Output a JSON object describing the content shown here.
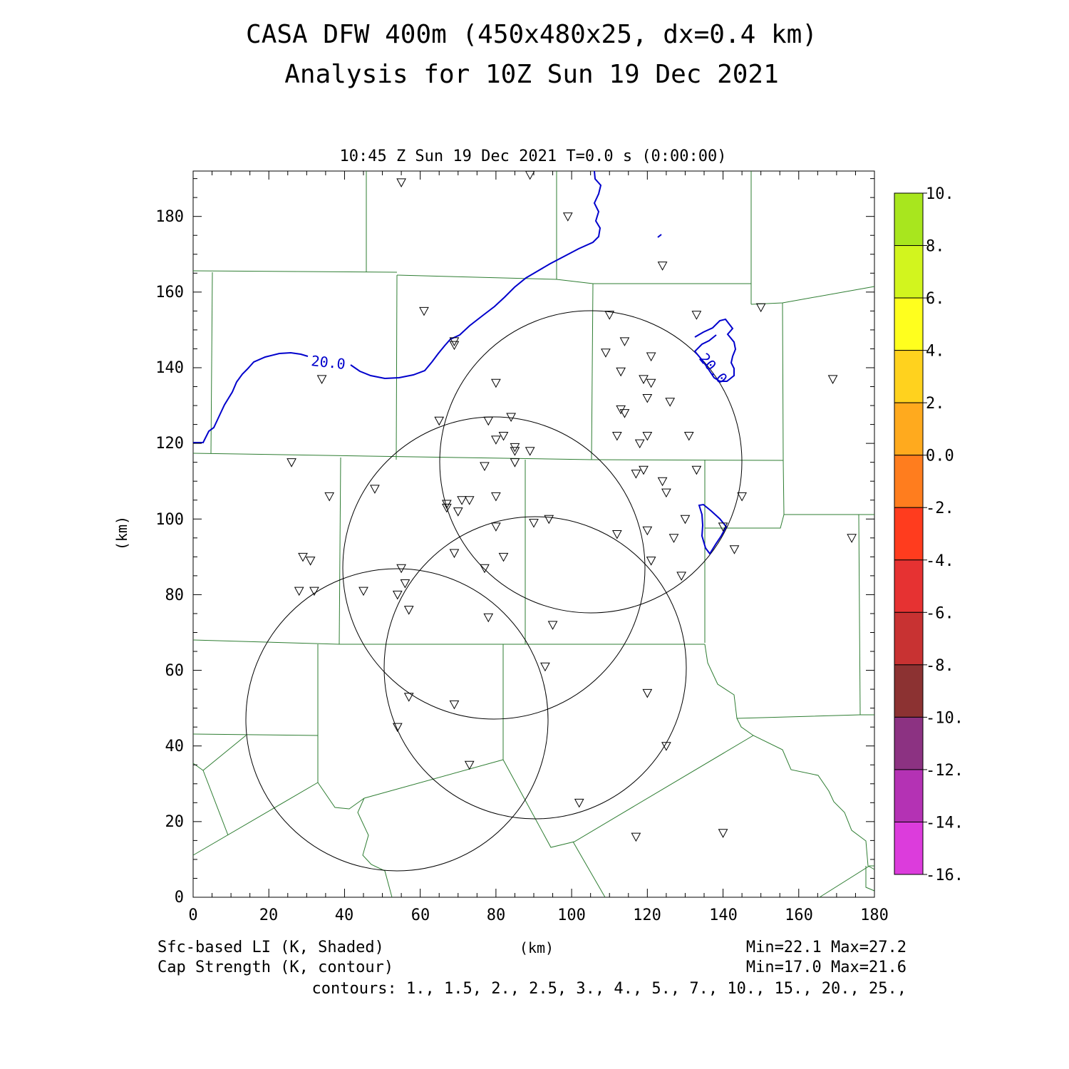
{
  "title_line1": "CASA DFW 400m (450x480x25, dx=0.4 km)",
  "title_line2": "Analysis for 10Z Sun 19 Dec 2021",
  "valid_time": "10:45 Z Sun 19 Dec 2021    T=0.0 s (0:00:00)",
  "x_axis_label": "(km)",
  "y_axis_label": "(km)",
  "x_ticks": [
    "0",
    "20",
    "40",
    "60",
    "80",
    "100",
    "120",
    "140",
    "160",
    "180"
  ],
  "y_ticks": [
    "0",
    "20",
    "40",
    "60",
    "80",
    "100",
    "120",
    "140",
    "160",
    "180"
  ],
  "footer": {
    "left_line1": "Sfc-based LI (K, Shaded)",
    "left_line2": "Cap Strength (K, contour)",
    "right_line1": "Min=22.1 Max=27.2",
    "right_line2": "Min=17.0 Max=21.6",
    "contours": "contours: 1., 1.5, 2., 2.5, 3., 4., 5., 7., 10., 15., 20., 25.,"
  },
  "contour_labels": [
    "20.0",
    "20.0"
  ],
  "colorbar": {
    "labels": [
      "10.",
      "8.",
      "6.",
      "4.",
      "2.",
      "0.0",
      "-2.",
      "-4.",
      "-6.",
      "-8.",
      "-10.",
      "-12.",
      "-14.",
      "-16."
    ],
    "colors": [
      "#a8e61e",
      "#d2f51e",
      "#ffff1e",
      "#ffd21e",
      "#ffaa1e",
      "#ff7d1e",
      "#ff3c1e",
      "#e63232",
      "#c83232",
      "#8c3232",
      "#8c3282",
      "#b432b4",
      "#dc3cdc"
    ]
  },
  "chart_data": {
    "type": "map",
    "x_range_km": [
      0,
      180
    ],
    "y_range_km": [
      0,
      192
    ],
    "shaded_field": "Sfc-based LI (K, Shaded)",
    "contour_field": "Cap Strength (K, contour)",
    "radar_rings_center_km": [
      [
        105,
        115
      ],
      [
        79,
        88
      ],
      [
        92,
        61
      ],
      [
        54,
        48
      ]
    ],
    "radar_ring_radius_km": 40,
    "stations_km": [
      [
        55,
        189
      ],
      [
        89,
        191
      ],
      [
        99,
        180
      ],
      [
        124,
        167
      ],
      [
        61,
        155
      ],
      [
        69,
        147
      ],
      [
        69,
        146
      ],
      [
        110,
        154
      ],
      [
        133,
        154
      ],
      [
        150,
        156
      ],
      [
        34,
        137
      ],
      [
        80,
        136
      ],
      [
        109,
        144
      ],
      [
        114,
        147
      ],
      [
        121,
        143
      ],
      [
        113,
        139
      ],
      [
        119,
        137
      ],
      [
        121,
        136
      ],
      [
        169,
        137
      ],
      [
        65,
        126
      ],
      [
        78,
        126
      ],
      [
        84,
        127
      ],
      [
        113,
        129
      ],
      [
        114,
        128
      ],
      [
        120,
        132
      ],
      [
        126,
        131
      ],
      [
        80,
        121
      ],
      [
        82,
        122
      ],
      [
        85,
        119
      ],
      [
        85,
        118
      ],
      [
        89,
        118
      ],
      [
        112,
        122
      ],
      [
        118,
        120
      ],
      [
        120,
        122
      ],
      [
        131,
        122
      ],
      [
        85,
        115
      ],
      [
        77,
        114
      ],
      [
        117,
        112
      ],
      [
        119,
        113
      ],
      [
        124,
        110
      ],
      [
        125,
        107
      ],
      [
        133,
        113
      ],
      [
        26,
        115
      ],
      [
        36,
        106
      ],
      [
        48,
        108
      ],
      [
        67,
        104
      ],
      [
        67,
        103
      ],
      [
        70,
        102
      ],
      [
        71,
        105
      ],
      [
        73,
        105
      ],
      [
        80,
        106
      ],
      [
        145,
        106
      ],
      [
        80,
        98
      ],
      [
        90,
        99
      ],
      [
        94,
        100
      ],
      [
        112,
        96
      ],
      [
        120,
        97
      ],
      [
        127,
        95
      ],
      [
        130,
        100
      ],
      [
        140,
        98
      ],
      [
        69,
        91
      ],
      [
        82,
        90
      ],
      [
        121,
        89
      ],
      [
        143,
        92
      ],
      [
        174,
        95
      ],
      [
        29,
        90
      ],
      [
        31,
        89
      ],
      [
        77,
        87
      ],
      [
        55,
        87
      ],
      [
        56,
        83
      ],
      [
        45,
        81
      ],
      [
        54,
        80
      ],
      [
        28,
        81
      ],
      [
        32,
        81
      ],
      [
        57,
        76
      ],
      [
        78,
        74
      ],
      [
        95,
        72
      ],
      [
        129,
        85
      ],
      [
        93,
        61
      ],
      [
        57,
        53
      ],
      [
        69,
        51
      ],
      [
        120,
        54
      ],
      [
        54,
        45
      ],
      [
        125,
        40
      ],
      [
        73,
        35
      ],
      [
        102,
        25
      ],
      [
        117,
        16
      ],
      [
        140,
        17
      ]
    ]
  }
}
